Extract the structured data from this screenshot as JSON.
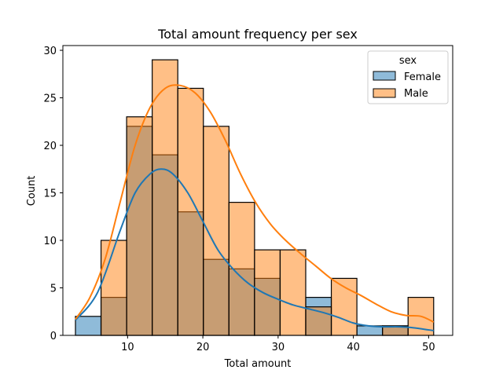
{
  "chart_data": {
    "type": "histogram",
    "title": "Total amount frequency per sex",
    "xlabel": "Total amount",
    "ylabel": "Count",
    "xlim": [
      1.4,
      53.2
    ],
    "ylim": [
      0,
      30.5
    ],
    "xticks": [
      10,
      20,
      30,
      40,
      50
    ],
    "yticks": [
      0,
      5,
      10,
      15,
      20,
      25,
      30
    ],
    "bin_edges": [
      3.07,
      6.47,
      9.87,
      13.27,
      16.67,
      20.07,
      23.47,
      26.87,
      30.27,
      33.67,
      37.07,
      40.47,
      43.87,
      47.27,
      50.67
    ],
    "legend": {
      "title": "sex",
      "position": "top-right"
    },
    "series": [
      {
        "name": "Female",
        "color": "#1f77b4",
        "values": [
          2,
          4,
          22,
          19,
          13,
          8,
          7,
          6,
          0,
          4,
          0,
          1,
          1,
          0
        ],
        "kde": [
          [
            3.07,
            1.6
          ],
          [
            6,
            4.5
          ],
          [
            9,
            11
          ],
          [
            11,
            15
          ],
          [
            13,
            17
          ],
          [
            14.5,
            17.5
          ],
          [
            16,
            17
          ],
          [
            18,
            15
          ],
          [
            20,
            12
          ],
          [
            22,
            9
          ],
          [
            24,
            7
          ],
          [
            26,
            5.5
          ],
          [
            28,
            4.5
          ],
          [
            30,
            3.8
          ],
          [
            32,
            3.2
          ],
          [
            34,
            2.8
          ],
          [
            36,
            2.4
          ],
          [
            38,
            1.9
          ],
          [
            40,
            1.3
          ],
          [
            42,
            1.0
          ],
          [
            44,
            0.9
          ],
          [
            46,
            0.9
          ],
          [
            48,
            0.8
          ],
          [
            50.67,
            0.5
          ]
        ]
      },
      {
        "name": "Male",
        "color": "#ff7f0e",
        "values": [
          0,
          10,
          23,
          29,
          26,
          22,
          14,
          9,
          9,
          3,
          6,
          0,
          1,
          4
        ],
        "kde": [
          [
            3.07,
            1.7
          ],
          [
            5,
            4
          ],
          [
            7,
            8
          ],
          [
            9,
            14
          ],
          [
            11,
            20
          ],
          [
            13,
            24
          ],
          [
            15,
            26
          ],
          [
            17,
            26.3
          ],
          [
            19,
            25.5
          ],
          [
            21,
            23.5
          ],
          [
            23,
            20.5
          ],
          [
            25,
            17
          ],
          [
            27,
            14
          ],
          [
            29,
            11.7
          ],
          [
            31,
            10
          ],
          [
            33,
            8.6
          ],
          [
            35,
            7.3
          ],
          [
            37,
            6
          ],
          [
            39,
            5
          ],
          [
            41,
            4.2
          ],
          [
            43,
            3.3
          ],
          [
            45,
            2.5
          ],
          [
            47,
            2.1
          ],
          [
            49,
            2.0
          ],
          [
            50.67,
            1.4
          ]
        ]
      }
    ]
  }
}
